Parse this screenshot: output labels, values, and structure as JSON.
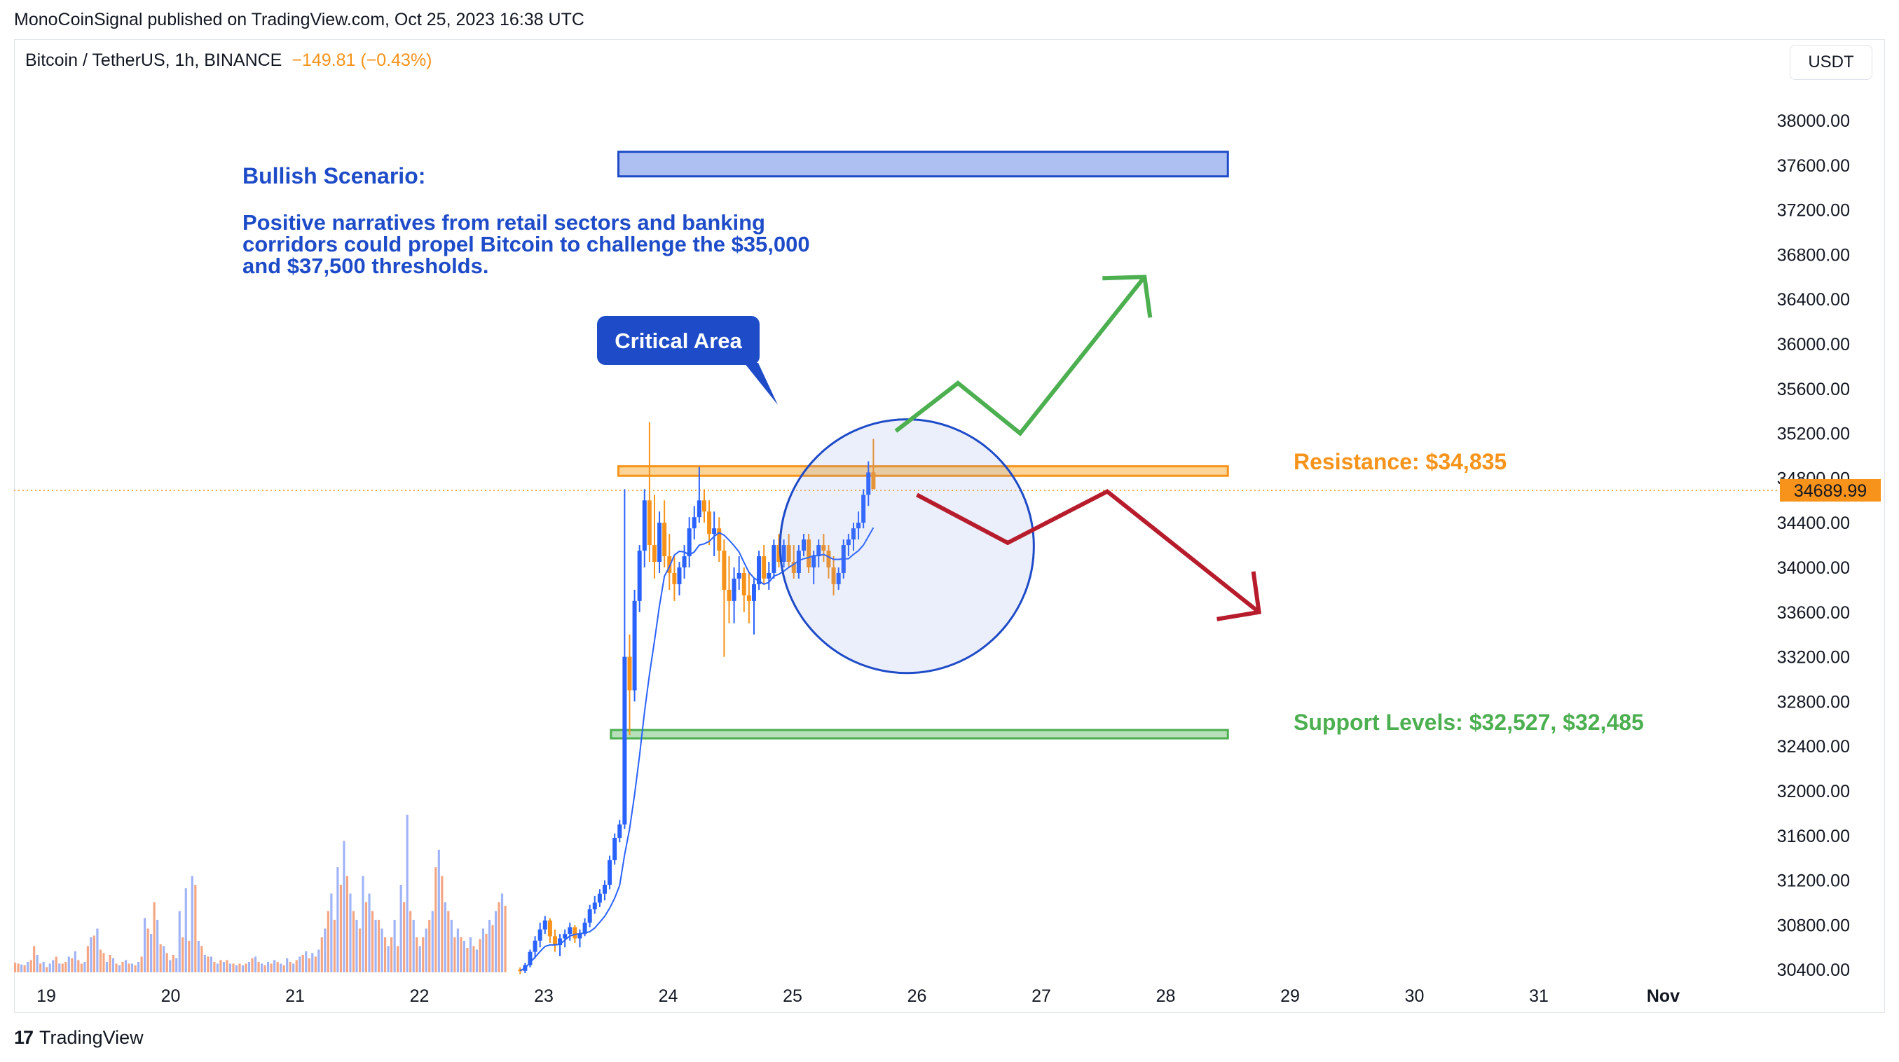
{
  "header": {
    "published": "MonoCoinSignal published on TradingView.com, Oct 25, 2023 16:38 UTC"
  },
  "symbol": {
    "name": "Bitcoin / TetherUS, 1h, BINANCE",
    "change": "−149.81 (−0.43%)",
    "unit": "USDT",
    "last_price_label": "34689.99"
  },
  "footer": {
    "brand": "TradingView",
    "logo_glyph": "17"
  },
  "annotations": {
    "bullish_title": "Bullish Scenario:",
    "bullish_lines": [
      "Positive narratives from retail sectors and banking",
      "corridors could propel Bitcoin to challenge the $35,000",
      "and $37,500 thresholds."
    ],
    "critical_area": "Critical Area",
    "resistance": "Resistance: $34,835",
    "support": "Support Levels: $32,527, $32,485"
  },
  "colors": {
    "accent_blue": "#1e4bc8",
    "resistance_orange": "#f7931a",
    "support_green": "#4caf50",
    "bear_red": "#b71c2c",
    "candle_blue": "#2962ff",
    "candle_orange": "#f7931a",
    "volume_blue": "#9fb3f7",
    "volume_orange": "#f4a582"
  },
  "chart_data": {
    "type": "candlestick",
    "ylim": [
      30300,
      38200
    ],
    "y_ticks": [
      "38000.00",
      "37600.00",
      "37200.00",
      "36800.00",
      "36400.00",
      "36000.00",
      "35600.00",
      "35200.00",
      "34800.00",
      "34400.00",
      "34000.00",
      "33600.00",
      "33200.00",
      "32800.00",
      "32400.00",
      "32000.00",
      "31600.00",
      "31200.00",
      "30800.00",
      "30400.00"
    ],
    "x_ticks": [
      "19",
      "20",
      "21",
      "22",
      "23",
      "24",
      "25",
      "26",
      "27",
      "28",
      "29",
      "30",
      "31",
      "Nov"
    ],
    "last_price": 34689.99,
    "zones": [
      {
        "name": "Target zone",
        "from_day": 23.6,
        "to_day": 28.5,
        "low": 37500,
        "high": 37720
      },
      {
        "name": "Resistance",
        "from_day": 23.6,
        "to_day": 28.5,
        "low": 34820,
        "high": 34905
      },
      {
        "name": "Support",
        "from_day": 23.54,
        "to_day": 28.5,
        "low": 32470,
        "high": 32545
      }
    ],
    "critical_circle": {
      "day": 25.92,
      "price": 34190,
      "radius_days": 1.0
    },
    "bull_path": [
      [
        25.83,
        35220
      ],
      [
        26.33,
        35650
      ],
      [
        26.83,
        35200
      ],
      [
        27.83,
        36600
      ]
    ],
    "bear_path": [
      [
        26.0,
        34650
      ],
      [
        26.73,
        34220
      ],
      [
        27.53,
        34680
      ],
      [
        28.75,
        33600
      ]
    ],
    "candles": [
      [
        22.81,
        30400,
        30420,
        30360,
        30390
      ],
      [
        22.85,
        30390,
        30460,
        30370,
        30440
      ],
      [
        22.89,
        30440,
        30580,
        30420,
        30560
      ],
      [
        22.93,
        30560,
        30700,
        30500,
        30660
      ],
      [
        22.97,
        30660,
        30820,
        30600,
        30760
      ],
      [
        23.01,
        30760,
        30880,
        30720,
        30840
      ],
      [
        23.05,
        30840,
        30860,
        30640,
        30700
      ],
      [
        23.09,
        30700,
        30760,
        30560,
        30620
      ],
      [
        23.13,
        30620,
        30720,
        30520,
        30680
      ],
      [
        23.17,
        30680,
        30760,
        30600,
        30720
      ],
      [
        23.21,
        30720,
        30820,
        30660,
        30780
      ],
      [
        23.25,
        30780,
        30800,
        30640,
        30680
      ],
      [
        23.29,
        30680,
        30760,
        30600,
        30720
      ],
      [
        23.33,
        30720,
        30860,
        30700,
        30820
      ],
      [
        23.37,
        30820,
        30980,
        30780,
        30940
      ],
      [
        23.41,
        30940,
        31060,
        30900,
        31000
      ],
      [
        23.45,
        31000,
        31120,
        30960,
        31080
      ],
      [
        23.49,
        31080,
        31200,
        31020,
        31160
      ],
      [
        23.53,
        31160,
        31420,
        31120,
        31380
      ],
      [
        23.57,
        31380,
        31620,
        31340,
        31580
      ],
      [
        23.61,
        31580,
        31740,
        31540,
        31700
      ],
      [
        23.65,
        31700,
        34700,
        31660,
        33200
      ],
      [
        23.69,
        33200,
        33400,
        32500,
        32900
      ],
      [
        23.73,
        32900,
        33800,
        32800,
        33700
      ],
      [
        23.77,
        33700,
        34200,
        33600,
        34150
      ],
      [
        23.81,
        34150,
        34700,
        34000,
        34600
      ],
      [
        23.85,
        34600,
        35300,
        34050,
        34200
      ],
      [
        23.89,
        34200,
        34650,
        33900,
        34050
      ],
      [
        23.93,
        34050,
        34500,
        33950,
        34400
      ],
      [
        23.97,
        34400,
        34600,
        34000,
        34100
      ],
      [
        24.01,
        34100,
        34300,
        33800,
        33950
      ],
      [
        24.05,
        33950,
        34100,
        33700,
        33850
      ],
      [
        24.09,
        33850,
        34050,
        33750,
        34000
      ],
      [
        24.13,
        34000,
        34200,
        33900,
        34100
      ],
      [
        24.17,
        34100,
        34450,
        34000,
        34350
      ],
      [
        24.21,
        34350,
        34550,
        34250,
        34450
      ],
      [
        24.25,
        34450,
        34900,
        34400,
        34600
      ],
      [
        24.29,
        34600,
        34700,
        34400,
        34500
      ],
      [
        24.33,
        34500,
        34600,
        34200,
        34300
      ],
      [
        24.37,
        34300,
        34500,
        34100,
        34350
      ],
      [
        24.41,
        34350,
        34450,
        34050,
        34150
      ],
      [
        24.45,
        34150,
        34250,
        33200,
        33800
      ],
      [
        24.49,
        33800,
        34100,
        33500,
        33700
      ],
      [
        24.53,
        33700,
        34000,
        33500,
        33900
      ],
      [
        24.57,
        33900,
        34100,
        33800,
        33950
      ],
      [
        24.61,
        33950,
        34000,
        33600,
        33750
      ],
      [
        24.65,
        33750,
        33950,
        33500,
        33700
      ],
      [
        24.69,
        33700,
        33900,
        33400,
        33850
      ],
      [
        24.73,
        33850,
        34150,
        33800,
        34100
      ],
      [
        24.77,
        34100,
        34200,
        33850,
        33900
      ],
      [
        24.81,
        33900,
        34050,
        33800,
        33950
      ],
      [
        24.85,
        33950,
        34250,
        33900,
        34200
      ],
      [
        24.89,
        34200,
        34300,
        34000,
        34050
      ],
      [
        24.93,
        34050,
        34250,
        34000,
        34200
      ],
      [
        24.97,
        34200,
        34300,
        34000,
        34050
      ],
      [
        25.01,
        34050,
        34200,
        33900,
        33950
      ],
      [
        25.05,
        33950,
        34200,
        33900,
        34150
      ],
      [
        25.09,
        34150,
        34300,
        34100,
        34250
      ],
      [
        25.13,
        34250,
        34300,
        33950,
        34000
      ],
      [
        25.17,
        34000,
        34150,
        33850,
        34100
      ],
      [
        25.21,
        34100,
        34250,
        34000,
        34200
      ],
      [
        25.25,
        34200,
        34300,
        34050,
        34150
      ],
      [
        25.29,
        34150,
        34200,
        33900,
        34000
      ],
      [
        25.33,
        34000,
        34100,
        33750,
        33850
      ],
      [
        25.37,
        33850,
        34000,
        33800,
        33950
      ],
      [
        25.41,
        33950,
        34250,
        33900,
        34200
      ],
      [
        25.45,
        34200,
        34300,
        34100,
        34250
      ],
      [
        25.49,
        34250,
        34400,
        34150,
        34350
      ],
      [
        25.53,
        34350,
        34500,
        34250,
        34400
      ],
      [
        25.57,
        34400,
        34700,
        34350,
        34650
      ],
      [
        25.61,
        34650,
        34950,
        34550,
        34850
      ],
      [
        25.65,
        34850,
        35150,
        34700,
        34700
      ]
    ],
    "volume": [
      [
        "o",
        11
      ],
      [
        "o",
        10
      ],
      [
        "b",
        9
      ],
      [
        "o",
        8
      ],
      [
        "b",
        12
      ],
      [
        "o",
        14
      ],
      [
        "o",
        30
      ],
      [
        "b",
        20
      ],
      [
        "o",
        10
      ],
      [
        "b",
        12
      ],
      [
        "o",
        6
      ],
      [
        "b",
        10
      ],
      [
        "b",
        14
      ],
      [
        "o",
        18
      ],
      [
        "b",
        10
      ],
      [
        "o",
        10
      ],
      [
        "o",
        12
      ],
      [
        "b",
        18
      ],
      [
        "o",
        16
      ],
      [
        "b",
        24
      ],
      [
        "o",
        14
      ],
      [
        "o",
        10
      ],
      [
        "b",
        12
      ],
      [
        "o",
        30
      ],
      [
        "b",
        40
      ],
      [
        "o",
        42
      ],
      [
        "b",
        50
      ],
      [
        "o",
        26
      ],
      [
        "o",
        22
      ],
      [
        "b",
        12
      ],
      [
        "o",
        20
      ],
      [
        "b",
        16
      ],
      [
        "o",
        10
      ],
      [
        "b",
        8
      ],
      [
        "o",
        12
      ],
      [
        "b",
        14
      ],
      [
        "o",
        10
      ],
      [
        "b",
        10
      ],
      [
        "o",
        8
      ],
      [
        "b",
        12
      ],
      [
        "o",
        18
      ],
      [
        "b",
        62
      ],
      [
        "o",
        50
      ],
      [
        "b",
        44
      ],
      [
        "o",
        80
      ],
      [
        "b",
        60
      ],
      [
        "o",
        32
      ],
      [
        "b",
        30
      ],
      [
        "o",
        22
      ],
      [
        "b",
        14
      ],
      [
        "o",
        20
      ],
      [
        "b",
        16
      ],
      [
        "b",
        70
      ],
      [
        "o",
        40
      ],
      [
        "b",
        96
      ],
      [
        "o",
        36
      ],
      [
        "b",
        110
      ],
      [
        "o",
        100
      ],
      [
        "b",
        36
      ],
      [
        "o",
        30
      ],
      [
        "b",
        20
      ],
      [
        "o",
        18
      ],
      [
        "b",
        18
      ],
      [
        "o",
        12
      ],
      [
        "b",
        10
      ],
      [
        "o",
        14
      ],
      [
        "b",
        12
      ],
      [
        "o",
        14
      ],
      [
        "b",
        10
      ],
      [
        "o",
        10
      ],
      [
        "b",
        8
      ],
      [
        "o",
        10
      ],
      [
        "b",
        8
      ],
      [
        "o",
        10
      ],
      [
        "b",
        12
      ],
      [
        "o",
        16
      ],
      [
        "b",
        18
      ],
      [
        "o",
        12
      ],
      [
        "b",
        10
      ],
      [
        "o",
        8
      ],
      [
        "b",
        12
      ],
      [
        "o",
        10
      ],
      [
        "b",
        14
      ],
      [
        "o",
        12
      ],
      [
        "b",
        10
      ],
      [
        "o",
        8
      ],
      [
        "b",
        16
      ],
      [
        "o",
        12
      ],
      [
        "b",
        10
      ],
      [
        "o",
        14
      ],
      [
        "b",
        18
      ],
      [
        "o",
        20
      ],
      [
        "b",
        24
      ],
      [
        "o",
        16
      ],
      [
        "b",
        22
      ],
      [
        "o",
        18
      ],
      [
        "b",
        26
      ],
      [
        "o",
        40
      ],
      [
        "b",
        50
      ],
      [
        "o",
        70
      ],
      [
        "b",
        90
      ],
      [
        "o",
        60
      ],
      [
        "b",
        120
      ],
      [
        "o",
        100
      ],
      [
        "b",
        150
      ],
      [
        "o",
        110
      ],
      [
        "b",
        90
      ],
      [
        "o",
        70
      ],
      [
        "b",
        60
      ],
      [
        "o",
        50
      ],
      [
        "b",
        110
      ],
      [
        "o",
        80
      ],
      [
        "b",
        90
      ],
      [
        "o",
        70
      ],
      [
        "b",
        60
      ],
      [
        "o",
        60
      ],
      [
        "b",
        50
      ],
      [
        "o",
        40
      ],
      [
        "b",
        30
      ],
      [
        "o",
        40
      ],
      [
        "b",
        60
      ],
      [
        "o",
        30
      ],
      [
        "b",
        100
      ],
      [
        "o",
        80
      ],
      [
        "b",
        180
      ],
      [
        "o",
        70
      ],
      [
        "b",
        60
      ],
      [
        "o",
        40
      ],
      [
        "b",
        30
      ],
      [
        "o",
        40
      ],
      [
        "b",
        50
      ],
      [
        "o",
        60
      ],
      [
        "b",
        70
      ],
      [
        "o",
        120
      ],
      [
        "b",
        140
      ],
      [
        "o",
        110
      ],
      [
        "b",
        80
      ],
      [
        "o",
        70
      ],
      [
        "b",
        60
      ],
      [
        "o",
        40
      ],
      [
        "b",
        50
      ],
      [
        "o",
        40
      ],
      [
        "b",
        36
      ],
      [
        "o",
        28
      ],
      [
        "b",
        40
      ],
      [
        "o",
        30
      ],
      [
        "b",
        26
      ],
      [
        "o",
        38
      ],
      [
        "b",
        50
      ],
      [
        "o",
        44
      ],
      [
        "b",
        60
      ],
      [
        "o",
        54
      ],
      [
        "b",
        70
      ],
      [
        "o",
        80
      ],
      [
        "b",
        90
      ],
      [
        "o",
        76
      ]
    ]
  }
}
